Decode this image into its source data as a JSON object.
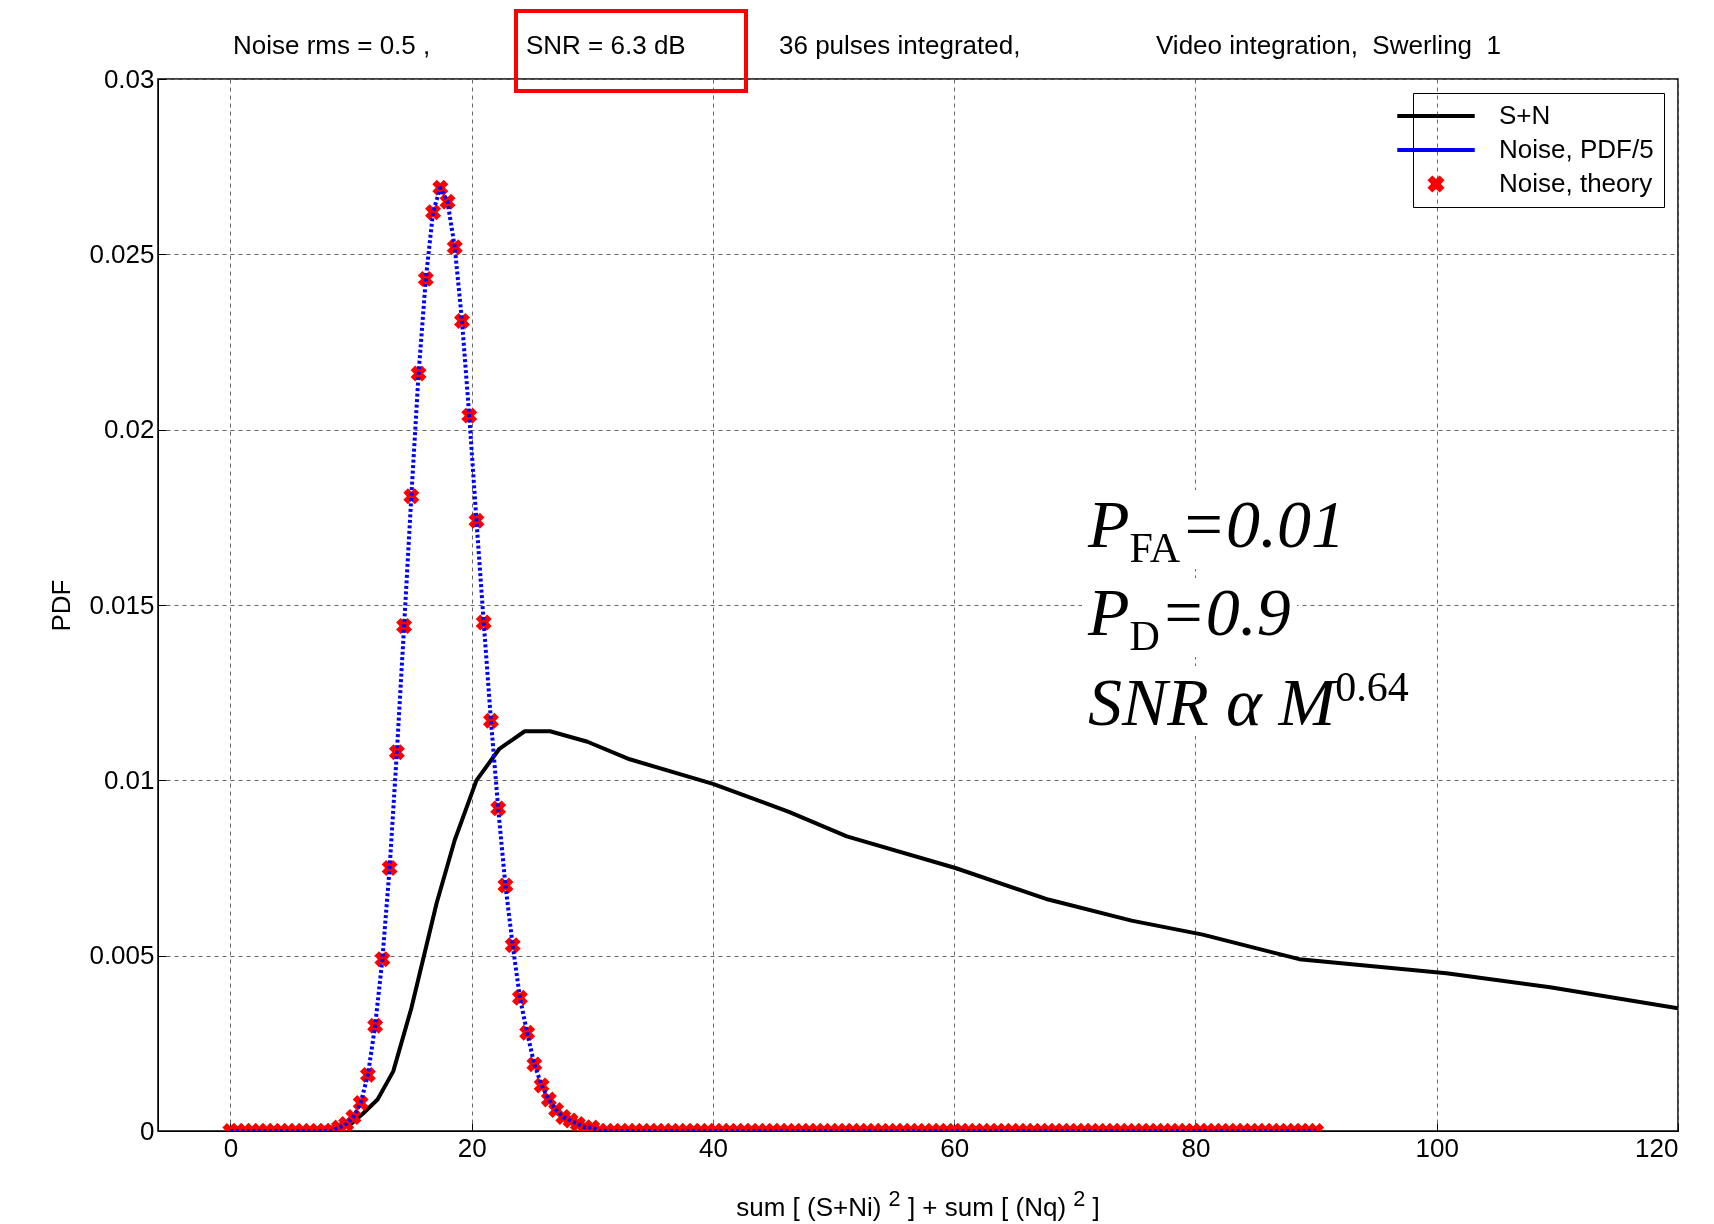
{
  "chart_data": {
    "type": "line",
    "title": "Noise rms = 0.5 ,",
    "annotations": [
      "SNR = 6.3 dB",
      "36 pulses integrated,",
      "Video integration,  Swerling  1",
      "P$_{FA}$=0.01",
      "P$_{D}$=0.9",
      "SNR α M$^{0.64}$"
    ],
    "xlabel": "sum [ (S+Ni) $^{2}$ ] + sum [ (Nq) $^{2}$ ]",
    "ylabel": "PDF",
    "xlim": [
      -6,
      120
    ],
    "xticks": [
      0,
      20,
      40,
      60,
      80,
      100,
      120
    ],
    "ylim": [
      0,
      0.03
    ],
    "yticks": [
      0,
      0.005,
      0.01,
      0.015,
      0.02,
      0.025,
      0.03
    ],
    "grid": true,
    "legend": "top right",
    "x": [
      0,
      0.6,
      1.2,
      1.8,
      2.4,
      3,
      3.6,
      4.2,
      4.8,
      5.4,
      6,
      6.6,
      7.2,
      7.8,
      8.4,
      9,
      9.6,
      10.2,
      10.8,
      11.4,
      12,
      12.6,
      13.2,
      13.8,
      14.4,
      15,
      15.6,
      16.2,
      16.8,
      17.4,
      18,
      18.6,
      19.2,
      19.8,
      20.4,
      21,
      21.6,
      22.2,
      22.8,
      23.4,
      24,
      24.6,
      25.2,
      25.8,
      26.4,
      27,
      27.6,
      28.2,
      28.8,
      29.4,
      30,
      30.6,
      31.2,
      31.8,
      32.4,
      33,
      33.6,
      34.2,
      34.8,
      35.4,
      36,
      36.6,
      37.2,
      37.8,
      38.4,
      39,
      39.6,
      40.2,
      40.8,
      41.4,
      42,
      42.6,
      43.2,
      43.8,
      44.4,
      45,
      45.6,
      46.2,
      46.8,
      47.4,
      48,
      48.6,
      49.2,
      49.8,
      50.4,
      51,
      51.6,
      52.2,
      52.8,
      53.4,
      54,
      54.6,
      55.2,
      55.8,
      56.4,
      57,
      57.6,
      58.2,
      58.8,
      59.4,
      60,
      60.6,
      61.2,
      61.8,
      62.4,
      63,
      63.6,
      64.2,
      64.8,
      65.4,
      66,
      66.6,
      67.2,
      67.8,
      68.4,
      69,
      69.6,
      70.2,
      70.8,
      71.4,
      72,
      72.6,
      73.2,
      73.8,
      74.4,
      75,
      75.6,
      76.2,
      76.8,
      77.4,
      78,
      78.6,
      79.2,
      79.8,
      80.4,
      81,
      81.6,
      82.2,
      82.8,
      83.4,
      84,
      84.6,
      85.2,
      85.8,
      86.4,
      87,
      87.6,
      88.2,
      88.8,
      89.4,
      90
    ],
    "series": [
      {
        "name": "S+N",
        "color": "#000000",
        "line_style": "solid",
        "x": [
          0,
          5,
          8,
          9,
          10,
          11,
          12.2,
          13.5,
          15,
          17.1,
          18.6,
          20.4,
          22.3,
          24.4,
          26.5,
          29.6,
          33.1,
          40,
          46.3,
          51.1,
          60.1,
          67.8,
          74.7,
          80.6,
          88.6,
          100.8,
          109.4,
          120
        ],
        "values": [
          0,
          0,
          0.0001,
          0.0001,
          0.0002,
          0.0005,
          0.0009,
          0.0017,
          0.0035,
          0.0065,
          0.0083,
          0.01,
          0.0109,
          0.0114,
          0.0114,
          0.0111,
          0.0106,
          0.0099,
          0.0091,
          0.0084,
          0.0075,
          0.0066,
          0.006,
          0.0056,
          0.0049,
          0.0045,
          0.0041,
          0.0035
        ]
      },
      {
        "name": "Noise, PDF/5",
        "color": "#0000ff",
        "line_style": "dotted",
        "values": [
          0,
          0,
          0,
          0,
          0,
          0,
          0,
          0,
          0,
          0,
          0,
          0,
          0,
          0,
          0,
          0.0001,
          0.0002,
          0.0004,
          0.0008,
          0.0016,
          0.003,
          0.0049,
          0.0075,
          0.0108,
          0.0144,
          0.0181,
          0.0216,
          0.0243,
          0.0262,
          0.0269,
          0.0265,
          0.0252,
          0.0231,
          0.0204,
          0.0174,
          0.0145,
          0.0117,
          0.0092,
          0.007,
          0.0053,
          0.0038,
          0.0028,
          0.0019,
          0.0013,
          0.0009,
          0.0006,
          0.0004,
          0.0003,
          0.0002,
          0.0001,
          0.0001,
          0,
          0,
          0,
          0,
          0,
          0,
          0,
          0,
          0,
          0,
          0,
          0,
          0,
          0,
          0,
          0,
          0,
          0,
          0,
          0,
          0,
          0,
          0,
          0,
          0,
          0,
          0,
          0,
          0,
          0,
          0,
          0,
          0,
          0,
          0,
          0,
          0,
          0,
          0,
          0,
          0,
          0,
          0,
          0,
          0,
          0,
          0,
          0,
          0,
          0,
          0,
          0,
          0,
          0,
          0,
          0,
          0,
          0,
          0,
          0,
          0,
          0,
          0,
          0,
          0,
          0,
          0,
          0,
          0,
          0,
          0,
          0,
          0,
          0,
          0,
          0,
          0,
          0,
          0,
          0,
          0,
          0,
          0,
          0,
          0,
          0,
          0,
          0,
          0,
          0,
          0,
          0,
          0,
          0,
          0,
          0,
          0,
          0,
          0,
          0
        ]
      },
      {
        "name": "Noise, theory",
        "type": "scatter",
        "color": "#ff0000",
        "marker": "cross",
        "values": [
          0,
          0,
          0,
          0,
          0,
          0,
          0,
          0,
          0,
          0,
          0,
          0,
          0,
          0,
          0,
          0.0001,
          0.0002,
          0.0004,
          0.0008,
          0.0016,
          0.003,
          0.0049,
          0.0075,
          0.0108,
          0.0144,
          0.0181,
          0.0216,
          0.0243,
          0.0262,
          0.0269,
          0.0265,
          0.0252,
          0.0231,
          0.0204,
          0.0174,
          0.0145,
          0.0117,
          0.0092,
          0.007,
          0.0053,
          0.0038,
          0.0028,
          0.0019,
          0.0013,
          0.0009,
          0.0006,
          0.0004,
          0.0003,
          0.0002,
          0.0001,
          0.0001,
          0,
          0,
          0,
          0,
          0,
          0,
          0,
          0,
          0,
          0,
          0,
          0,
          0,
          0,
          0,
          0,
          0,
          0,
          0,
          0,
          0,
          0,
          0,
          0,
          0,
          0,
          0,
          0,
          0,
          0,
          0,
          0,
          0,
          0,
          0,
          0,
          0,
          0,
          0,
          0,
          0,
          0,
          0,
          0,
          0,
          0,
          0,
          0,
          0,
          0,
          0,
          0,
          0,
          0,
          0,
          0,
          0,
          0,
          0,
          0,
          0,
          0,
          0,
          0,
          0,
          0,
          0,
          0,
          0,
          0,
          0,
          0,
          0,
          0,
          0,
          0,
          0,
          0,
          0,
          0,
          0,
          0,
          0,
          0,
          0,
          0,
          0,
          0,
          0,
          0,
          0,
          0,
          0,
          0,
          0,
          0,
          0,
          0,
          0,
          0
        ]
      }
    ]
  }
}
